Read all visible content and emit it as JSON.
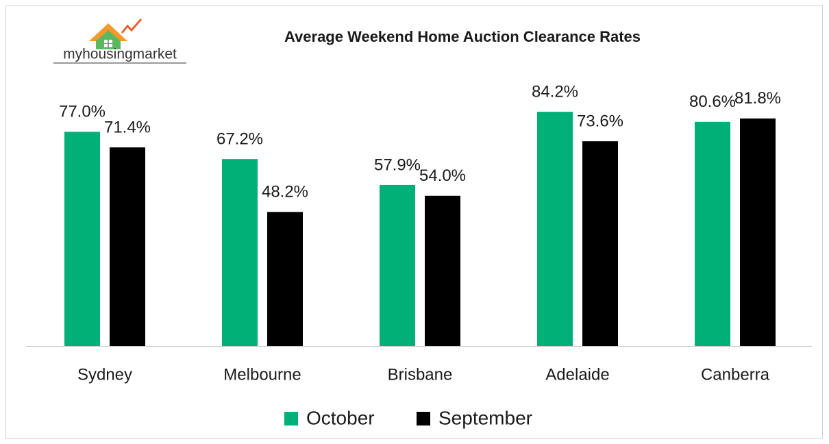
{
  "chart_data": {
    "type": "bar",
    "title": "Average Weekend  Home Auction Clearance Rates",
    "logo": "myhousingmarket",
    "categories": [
      "Sydney",
      "Melbourne",
      "Brisbane",
      "Adelaide",
      "Canberra"
    ],
    "series": [
      {
        "name": "October",
        "color": "#00b077",
        "values": [
          77.0,
          67.2,
          57.9,
          84.2,
          80.6
        ],
        "value_labels": [
          "77.0%",
          "67.2%",
          "57.9%",
          "84.2%",
          "80.6%"
        ]
      },
      {
        "name": "September",
        "color": "#000000",
        "values": [
          71.4,
          48.2,
          54.0,
          73.6,
          81.8
        ],
        "value_labels": [
          "71.4%",
          "48.2%",
          "54.0%",
          "73.6%",
          "81.8%"
        ]
      }
    ],
    "ylim": [
      0,
      100
    ],
    "legend": "bottom"
  }
}
